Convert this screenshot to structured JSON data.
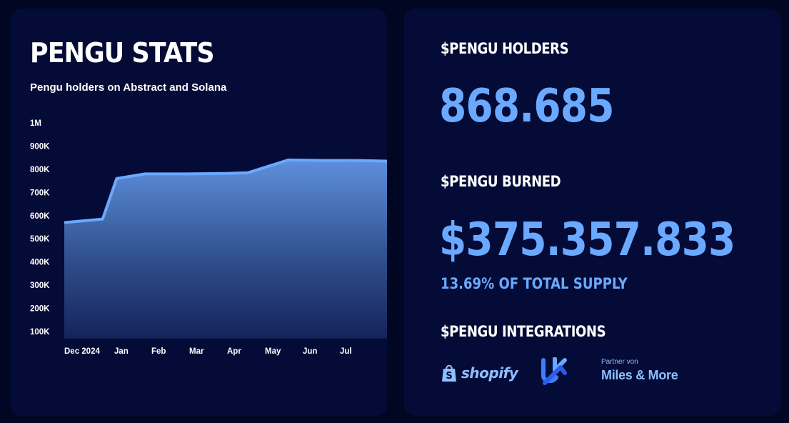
{
  "left_panel": {
    "title": "PENGU STATS",
    "subtitle": "Pengu holders on Abstract and Solana"
  },
  "chart_data": {
    "type": "area",
    "title": "PENGU STATS",
    "subtitle": "Pengu holders on Abstract and Solana",
    "xlabel": "",
    "ylabel": "",
    "x_tick_labels": [
      "Dec 2024",
      "Jan",
      "Feb",
      "Mar",
      "Apr",
      "May",
      "Jun",
      "Jul"
    ],
    "y_tick_labels": [
      "1M",
      "900K",
      "800K",
      "700K",
      "600K",
      "500K",
      "400K",
      "300K",
      "200K",
      "100K"
    ],
    "y_tick_values": [
      1000000,
      900000,
      800000,
      700000,
      600000,
      500000,
      400000,
      300000,
      200000,
      100000
    ],
    "ylim": [
      70000,
      1000000
    ],
    "x": [
      "Dec 2024",
      "Jan 2025",
      "Jan 2025",
      "Feb 2025",
      "Mar 2025",
      "Apr 2025",
      "Apr 2025",
      "May 2025",
      "Jun 2025",
      "Jul 2025",
      "Jul 2025"
    ],
    "x_index": [
      0,
      0.95,
      1.3,
      2.0,
      3.0,
      4.0,
      4.55,
      5.55,
      6.45,
      7.25,
      8.0
    ],
    "series": [
      {
        "values": [
          570000,
          585000,
          760000,
          780000,
          780000,
          782000,
          785000,
          840000,
          838000,
          838000,
          835000
        ],
        "color": "#6aa9ff"
      }
    ],
    "grid": false,
    "legend": "none"
  },
  "right_panel": {
    "holders_heading": "$PENGU HOLDERS",
    "holders_value": "868.685",
    "burned_heading": "$PENGU BURNED",
    "burned_value": "$375.357.833",
    "supply_note": "13.69% OF TOTAL SUPPLY",
    "integrations_heading": "$PENGU INTEGRATIONS",
    "integrations": {
      "shopify": "shopify",
      "abstract_icon": "abstract-logo-icon",
      "miles_partner": "Partner von",
      "miles_name": "Miles & More"
    }
  },
  "colors": {
    "background": "#010622",
    "card": "#030b36",
    "accent": "#6aa9ff",
    "text": "#ffffff"
  }
}
